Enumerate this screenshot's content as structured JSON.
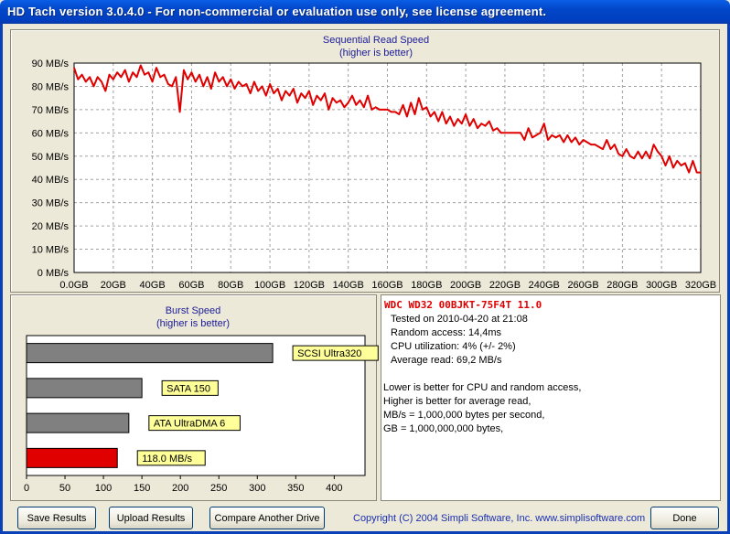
{
  "window": {
    "title": "HD Tach version 3.0.4.0  - For non-commercial or evaluation use only, see license agreement."
  },
  "colors": {
    "line": "#e00000",
    "burst_bar": "#e00000",
    "ref_bar": "#808080",
    "label_bg": "#ffff99",
    "title_text": "#1b1b9a"
  },
  "chart_data": [
    {
      "type": "line",
      "title": "Sequential Read Speed",
      "subtitle": "(higher is better)",
      "xlabel": "",
      "ylabel": "",
      "xlim": [
        0,
        320
      ],
      "ylim": [
        0,
        90
      ],
      "grid": true,
      "x_ticks": [
        "0.0GB",
        "20GB",
        "40GB",
        "60GB",
        "80GB",
        "100GB",
        "120GB",
        "140GB",
        "160GB",
        "180GB",
        "200GB",
        "220GB",
        "240GB",
        "260GB",
        "280GB",
        "300GB",
        "320GB"
      ],
      "y_ticks": [
        "0 MB/s",
        "10 MB/s",
        "20 MB/s",
        "30 MB/s",
        "40 MB/s",
        "50 MB/s",
        "60 MB/s",
        "70 MB/s",
        "80 MB/s",
        "90 MB/s"
      ],
      "x": [
        0,
        2,
        4,
        6,
        8,
        10,
        12,
        14,
        16,
        18,
        20,
        22,
        24,
        26,
        28,
        30,
        32,
        34,
        36,
        38,
        40,
        42,
        44,
        46,
        48,
        50,
        52,
        54,
        56,
        58,
        60,
        62,
        64,
        66,
        68,
        70,
        72,
        74,
        76,
        78,
        80,
        82,
        84,
        86,
        88,
        90,
        92,
        94,
        96,
        98,
        100,
        102,
        104,
        106,
        108,
        110,
        112,
        114,
        116,
        118,
        120,
        122,
        124,
        126,
        128,
        130,
        132,
        134,
        136,
        138,
        140,
        142,
        144,
        146,
        148,
        150,
        152,
        154,
        156,
        158,
        160,
        162,
        164,
        166,
        168,
        170,
        172,
        174,
        176,
        178,
        180,
        182,
        184,
        186,
        188,
        190,
        192,
        194,
        196,
        198,
        200,
        202,
        204,
        206,
        208,
        210,
        212,
        214,
        216,
        218,
        220,
        222,
        224,
        226,
        228,
        230,
        232,
        234,
        236,
        238,
        240,
        242,
        244,
        246,
        248,
        250,
        252,
        254,
        256,
        258,
        260,
        262,
        264,
        266,
        268,
        270,
        272,
        274,
        276,
        278,
        280,
        282,
        284,
        286,
        288,
        290,
        292,
        294,
        296,
        298,
        300,
        302,
        304,
        306,
        308,
        310,
        312,
        314,
        316,
        318,
        320
      ],
      "series": [
        {
          "values": [
            88,
            83,
            85,
            82,
            84,
            80,
            84,
            82,
            78,
            85,
            83,
            86,
            84,
            87,
            82,
            86,
            84,
            89,
            85,
            86,
            82,
            88,
            84,
            85,
            81,
            80,
            84,
            69,
            87,
            83,
            86,
            82,
            85,
            80,
            84,
            79,
            86,
            82,
            84,
            80,
            83,
            79,
            82,
            80,
            81,
            77,
            82,
            78,
            80,
            76,
            81,
            77,
            79,
            74,
            78,
            76,
            79,
            73,
            77,
            75,
            78,
            72,
            76,
            74,
            77,
            70,
            75,
            73,
            74,
            71,
            73,
            76,
            72,
            74,
            71,
            76,
            70,
            71,
            70,
            70,
            70,
            69,
            69,
            68,
            72,
            67,
            73,
            68,
            75,
            70,
            71,
            67,
            69,
            65,
            69,
            64,
            67,
            63,
            66,
            64,
            68,
            63,
            66,
            62,
            64,
            63,
            65,
            61,
            62,
            60,
            60,
            60,
            60,
            60,
            60,
            57,
            62,
            58,
            59,
            60,
            64,
            57,
            59,
            58,
            59,
            56,
            59,
            56,
            58,
            55,
            57,
            56,
            55,
            55,
            54,
            53,
            57,
            53,
            55,
            51,
            50,
            53,
            50,
            49,
            52,
            49,
            52,
            49,
            55,
            52,
            50,
            46,
            50,
            45,
            48,
            46,
            47,
            43,
            48,
            43,
            43
          ]
        }
      ]
    },
    {
      "type": "bar",
      "title": "Burst Speed",
      "subtitle": "(higher is better)",
      "orientation": "horizontal",
      "categories": [
        "SCSI Ultra320",
        "SATA 150",
        "ATA UltraDMA 6",
        "118.0 MB/s"
      ],
      "values": [
        320,
        150,
        133,
        118
      ],
      "xlim": [
        0,
        440
      ],
      "x_ticks": [
        "0",
        "50",
        "100",
        "150",
        "200",
        "250",
        "300",
        "350",
        "400"
      ],
      "grid": false
    }
  ],
  "info": {
    "drive": "WDC  WD32 00BJKT-75F4T 11.0",
    "tested_on": "Tested on 2010-04-20 at 21:08",
    "random_access": "Random access: 14,4ms",
    "cpu": "CPU utilization: 4% (+/- 2%)",
    "avg_read": "Average read: 69,2 MB/s",
    "notes": [
      "Lower is better for CPU and random access,",
      "Higher is better for average read,",
      "MB/s = 1,000,000 bytes per second,",
      "GB = 1,000,000,000 bytes,"
    ]
  },
  "buttons": {
    "save": "Save Results",
    "upload": "Upload Results",
    "compare": "Compare Another Drive",
    "done": "Done"
  },
  "copyright": "Copyright (C) 2004 Simpli Software, Inc. www.simplisoftware.com"
}
